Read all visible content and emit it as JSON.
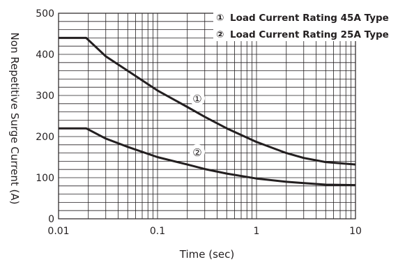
{
  "chart_data": {
    "type": "line",
    "xlabel": "Time (sec)",
    "ylabel": "Non Repetitive Surge Current (A)",
    "x_scale": "log",
    "xlim": [
      0.01,
      10
    ],
    "ylim": [
      0,
      500
    ],
    "x_ticks": [
      "0.01",
      "0.1",
      "1",
      "10"
    ],
    "y_ticks": [
      "0",
      "100",
      "200",
      "300",
      "400",
      "500"
    ],
    "grid": true,
    "legend_position": "top-right",
    "legend": [
      {
        "marker": "①",
        "label": "Load Current Rating 45A Type"
      },
      {
        "marker": "②",
        "label": "Load Current Rating 25A Type"
      }
    ],
    "series": [
      {
        "name": "①",
        "x": [
          0.01,
          0.019,
          0.03,
          0.05,
          0.1,
          0.2,
          0.3,
          0.5,
          1,
          2,
          3,
          5,
          10
        ],
        "y": [
          440,
          440,
          395,
          360,
          312,
          272,
          248,
          220,
          187,
          160,
          148,
          138,
          132
        ]
      },
      {
        "name": "②",
        "x": [
          0.01,
          0.019,
          0.03,
          0.05,
          0.1,
          0.2,
          0.3,
          0.5,
          1,
          2,
          3,
          5,
          10
        ],
        "y": [
          220,
          220,
          195,
          175,
          150,
          132,
          121,
          110,
          98,
          90,
          87,
          83,
          82
        ]
      }
    ]
  }
}
